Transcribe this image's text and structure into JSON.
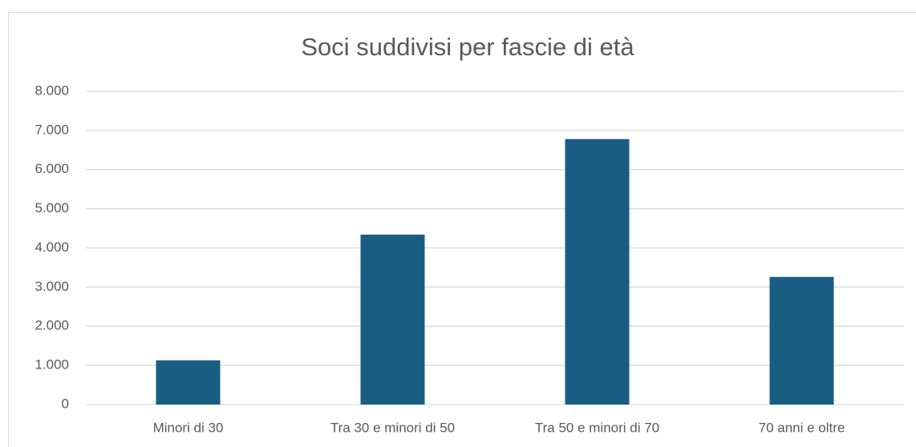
{
  "chart_data": {
    "type": "bar",
    "title": "Soci suddivisi per fascie di età",
    "categories": [
      "Minori di 30",
      "Tra 30 e minori di 50",
      "Tra 50 e minori di 70",
      "70 anni e oltre"
    ],
    "values": [
      1130,
      4340,
      6780,
      3260
    ],
    "color": "#175e82",
    "ylim": [
      0,
      8000
    ],
    "yticks": [
      0,
      {
        "value": 1000,
        "label": "1.000"
      },
      {
        "value": 2000,
        "label": "2.000"
      },
      {
        "value": 3000,
        "label": "3.000"
      },
      {
        "value": 4000,
        "label": "4.000"
      },
      {
        "value": 5000,
        "label": "5.000"
      },
      {
        "value": 6000,
        "label": "6.000"
      },
      {
        "value": 7000,
        "label": "7.000"
      },
      {
        "value": 8000,
        "label": "8.000"
      }
    ],
    "grid": true
  }
}
